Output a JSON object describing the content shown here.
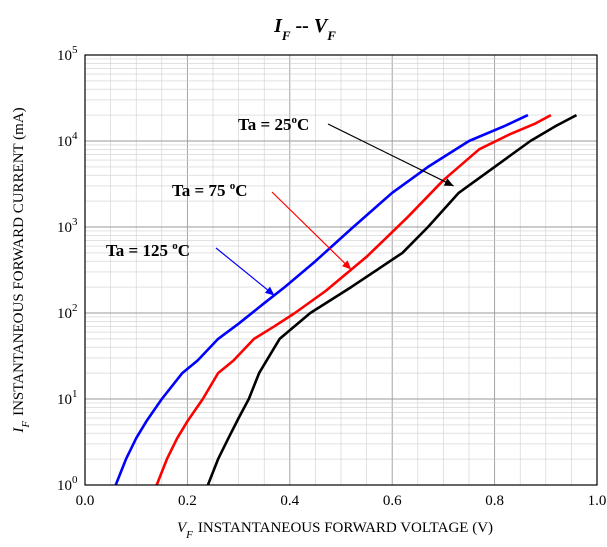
{
  "chart_data": {
    "type": "line",
    "title": "IF -- VF",
    "title_parts": {
      "main1": "I",
      "sub1": "F",
      "sep": " -- ",
      "main2": "V",
      "sub2": "F"
    },
    "xlabel": "VF INSTANTANEOUS FORWARD VOLTAGE (V)",
    "xlabel_parts": {
      "sym": "V",
      "sub": "F",
      "text": "INSTANTANEOUS FORWARD VOLTAGE (V)"
    },
    "ylabel": "IF INSTANTANEOUS FORWARD CURRENT (mA)",
    "ylabel_parts": {
      "sym": "I",
      "sub": "F",
      "text": "INSTANTANEOUS FORWARD CURRENT (mA)"
    },
    "xlim": [
      0.0,
      1.0
    ],
    "ylim": [
      1,
      100000
    ],
    "y_scale": "log",
    "grid": true,
    "x_ticks": [
      "0.0",
      "0.2",
      "0.4",
      "0.6",
      "0.8",
      "1.0"
    ],
    "y_ticks": [
      {
        "base": "10",
        "exp": "0"
      },
      {
        "base": "10",
        "exp": "1"
      },
      {
        "base": "10",
        "exp": "2"
      },
      {
        "base": "10",
        "exp": "3"
      },
      {
        "base": "10",
        "exp": "4"
      },
      {
        "base": "10",
        "exp": "5"
      }
    ],
    "series": [
      {
        "name": "Ta = 125 °C",
        "color": "#0000ff",
        "x": [
          0.06,
          0.08,
          0.1,
          0.12,
          0.15,
          0.19,
          0.22,
          0.26,
          0.3,
          0.35,
          0.39,
          0.45,
          0.52,
          0.6,
          0.67,
          0.75,
          0.82,
          0.865
        ],
        "y": [
          1,
          2,
          3.5,
          5.5,
          10,
          20,
          28,
          50,
          75,
          130,
          200,
          400,
          950,
          2500,
          5000,
          10000,
          15000,
          20000
        ]
      },
      {
        "name": "Ta = 75 °C",
        "color": "#ff0000",
        "x": [
          0.14,
          0.16,
          0.18,
          0.2,
          0.23,
          0.26,
          0.29,
          0.33,
          0.37,
          0.41,
          0.47,
          0.55,
          0.63,
          0.7,
          0.77,
          0.83,
          0.88,
          0.91
        ],
        "y": [
          1,
          2,
          3.5,
          5.5,
          10,
          20,
          28,
          50,
          70,
          100,
          180,
          450,
          1300,
          3500,
          8000,
          12000,
          16000,
          20000
        ]
      },
      {
        "name": "Ta = 25°C",
        "color": "#000000",
        "x": [
          0.24,
          0.26,
          0.28,
          0.3,
          0.32,
          0.34,
          0.38,
          0.44,
          0.52,
          0.62,
          0.67,
          0.73,
          0.8,
          0.87,
          0.92,
          0.96
        ],
        "y": [
          1,
          2,
          3.5,
          6,
          10,
          20,
          50,
          100,
          200,
          500,
          1000,
          2500,
          5000,
          10000,
          15000,
          20000
        ]
      }
    ],
    "annotations": [
      {
        "text": "Ta = 25",
        "sup": "o",
        "after": "C",
        "series": 2
      },
      {
        "text": "Ta = 75 ",
        "sup": "o",
        "after": "C",
        "series": 1
      },
      {
        "text": "Ta = 125 ",
        "sup": "o",
        "after": "C",
        "series": 0
      }
    ]
  }
}
